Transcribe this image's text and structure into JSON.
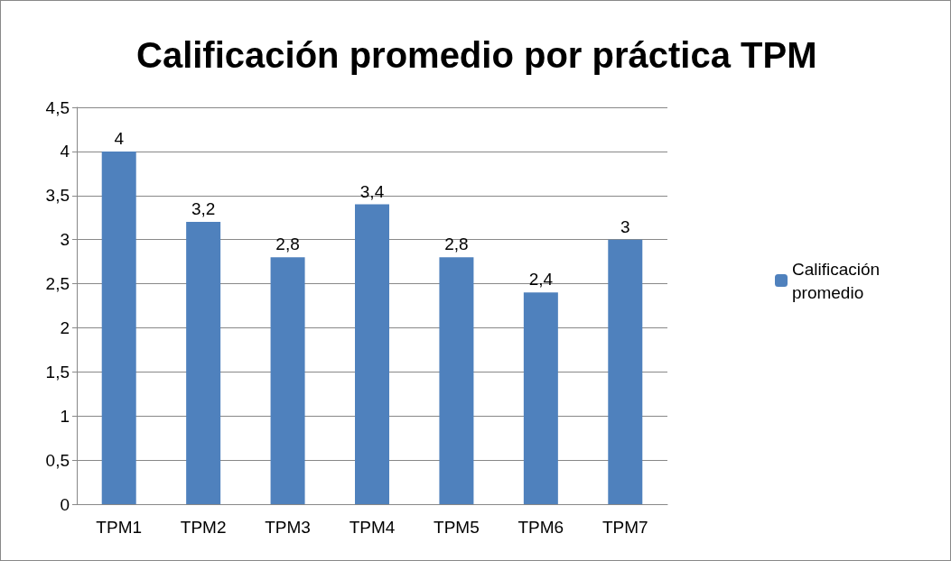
{
  "chart_data": {
    "type": "bar",
    "title": "Calificación promedio por práctica TPM",
    "categories": [
      "TPM1",
      "TPM2",
      "TPM3",
      "TPM4",
      "TPM5",
      "TPM6",
      "TPM7"
    ],
    "series": [
      {
        "name": "Calificación promedio",
        "color": "#4f81bd",
        "values": [
          4,
          3.2,
          2.8,
          3.4,
          2.8,
          2.4,
          3
        ],
        "value_labels": [
          "4",
          "3,2",
          "2,8",
          "3,4",
          "2,8",
          "2,4",
          "3"
        ]
      }
    ],
    "ylim": [
      0,
      4.5
    ],
    "yticks": [
      0,
      {
        "value": 0.5,
        "label": "0,5"
      },
      1,
      {
        "value": 1.5,
        "label": "1,5"
      },
      2,
      {
        "value": 2.5,
        "label": "2,5"
      },
      3,
      {
        "value": 3.5,
        "label": "3,5"
      },
      4,
      {
        "value": 4.5,
        "label": "4,5"
      }
    ],
    "grid": "y",
    "legend": "right"
  }
}
